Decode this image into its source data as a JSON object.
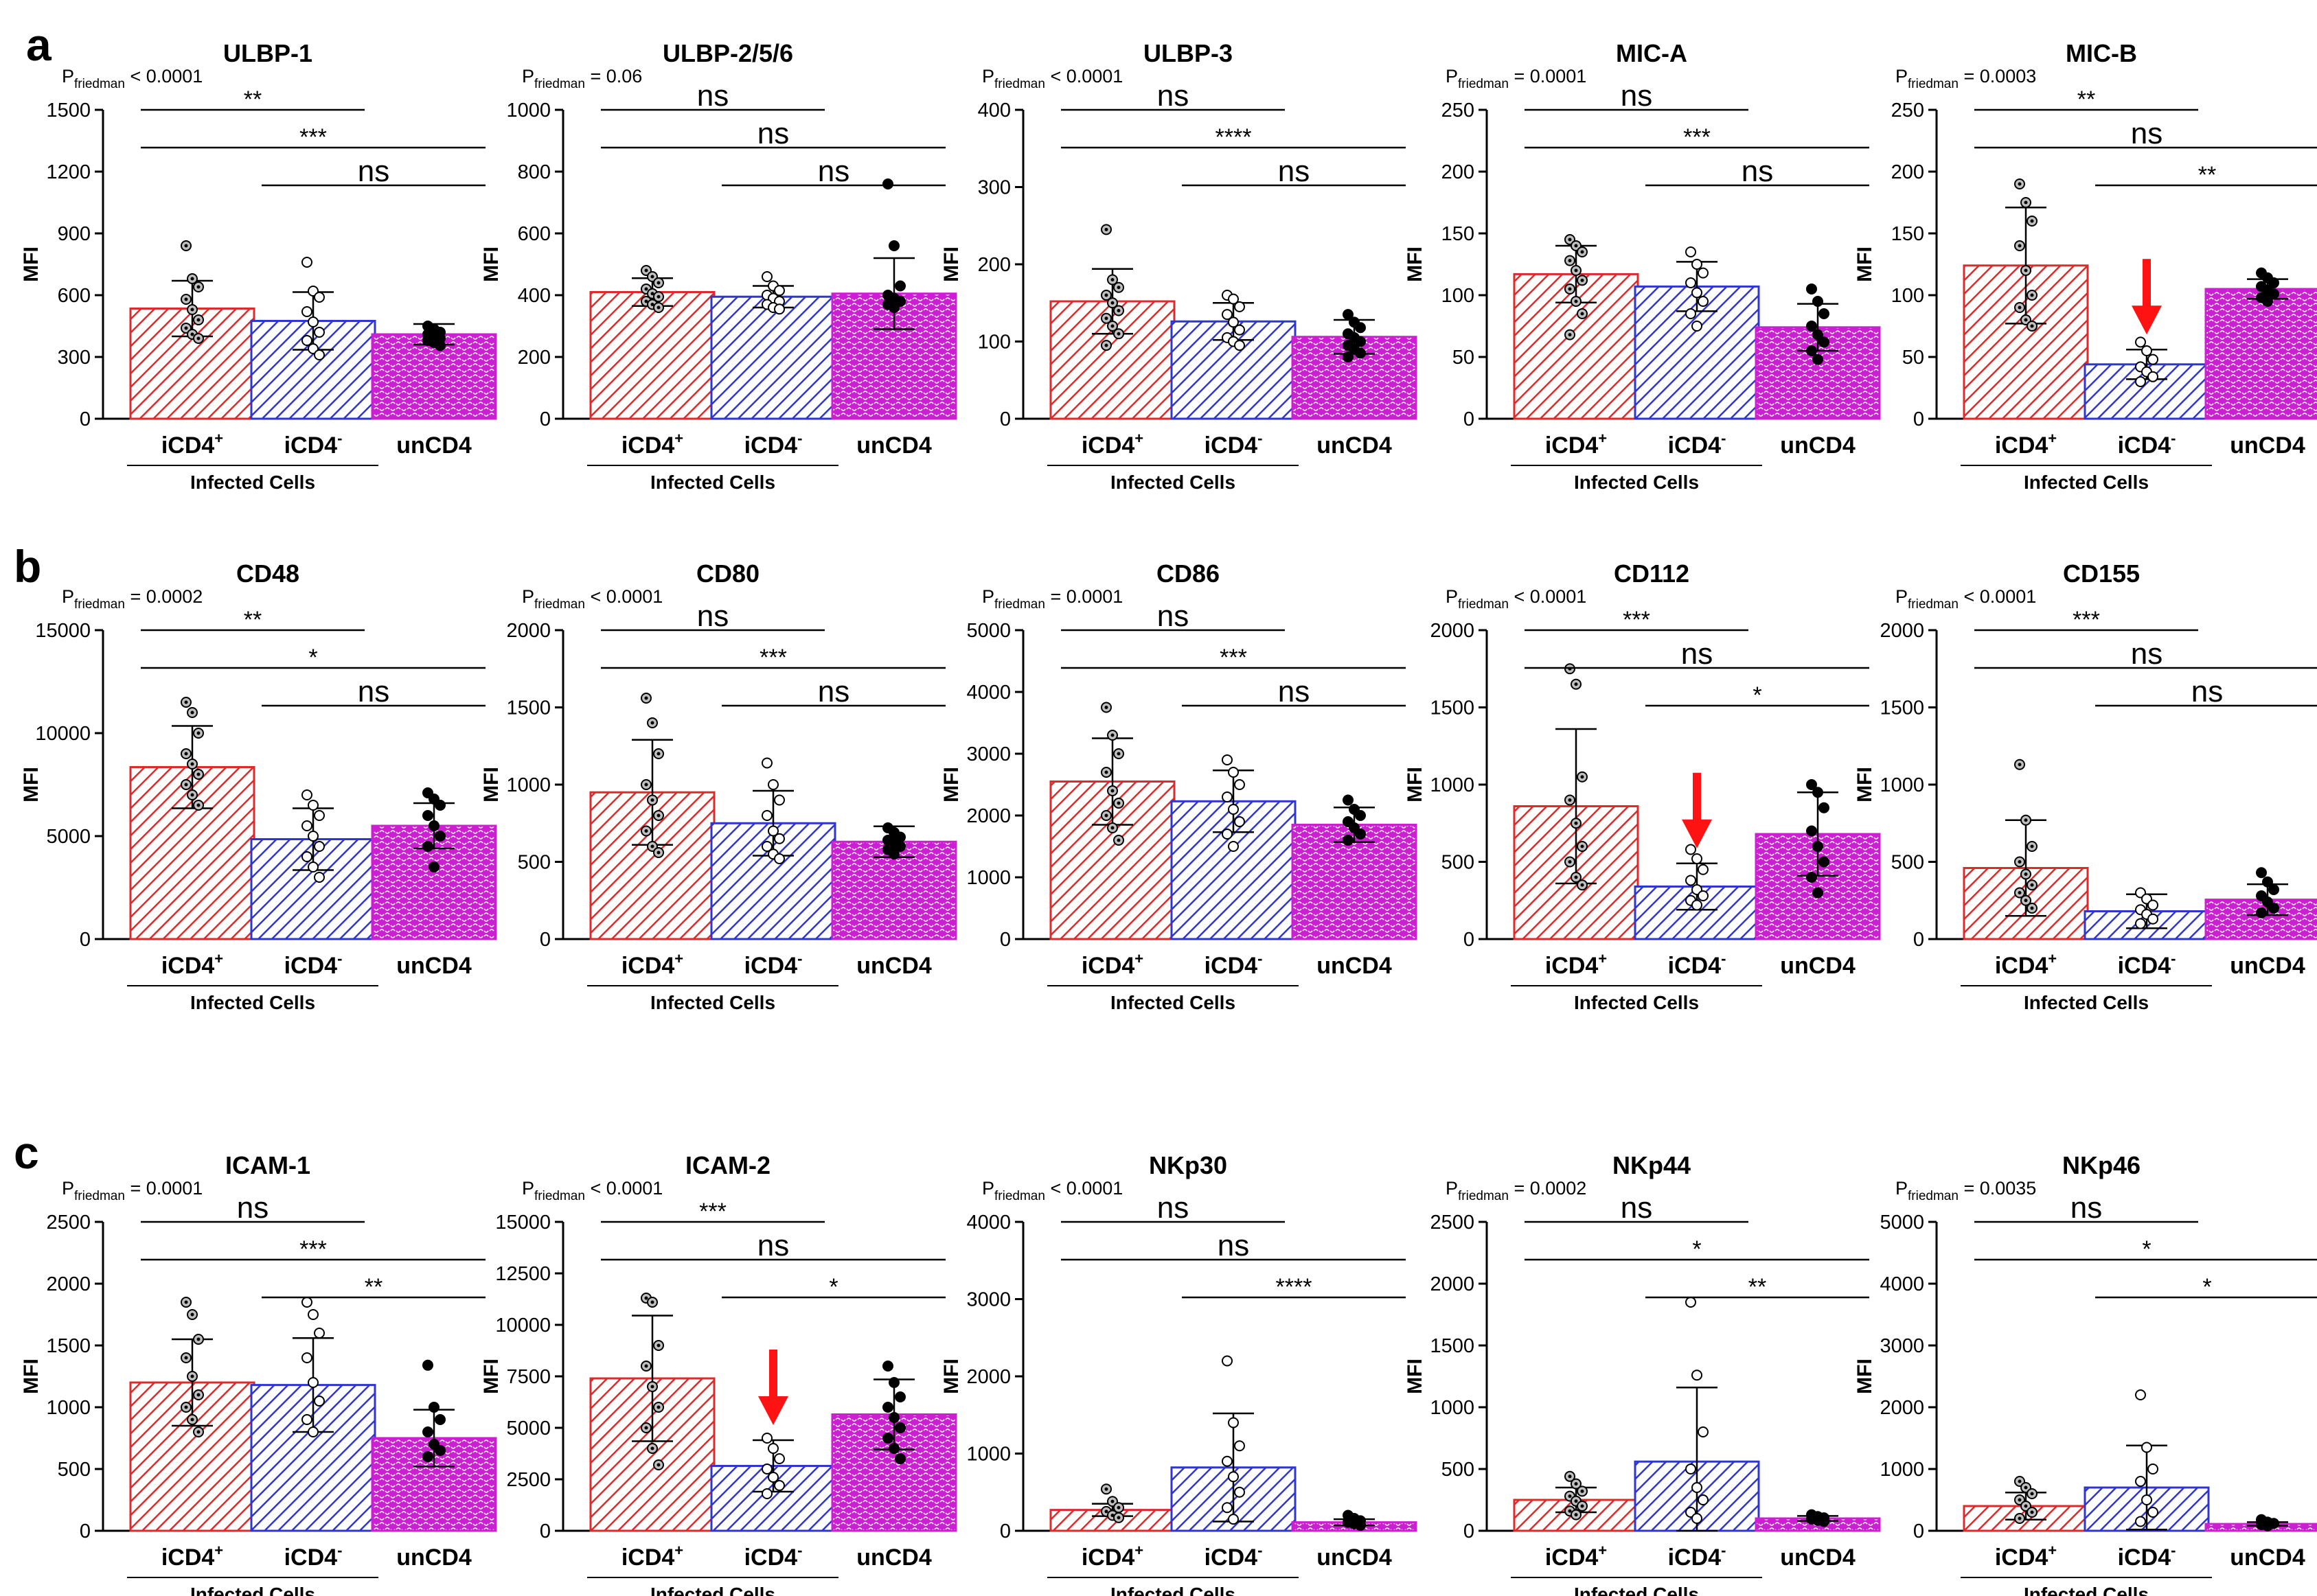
{
  "colors": {
    "red": "#dd2a2a",
    "blue": "#2f36cf",
    "magenta": "#cc1fd1",
    "arrow": "#ff1212",
    "axis": "#000000"
  },
  "rows": [
    {
      "label": "a"
    },
    {
      "label": "b"
    },
    {
      "label": "c"
    }
  ],
  "common": {
    "ylabel": "MFI",
    "infected_label": "Infected Cells",
    "p_prefix": "P",
    "p_sub": "friedman",
    "cat_iplus": {
      "base": "iCD4",
      "sup": "+"
    },
    "cat_iminus": {
      "base": "iCD4",
      "sup": "-"
    },
    "cat_un": "unCD4"
  },
  "chart_data": [
    {
      "type": "bar",
      "title": "ULBP-1",
      "p_value": " < 0.0001",
      "ylim": [
        0,
        1500
      ],
      "yticks": [
        0,
        300,
        600,
        900,
        1200,
        1500
      ],
      "categories": [
        "iCD4+",
        "iCD4-",
        "unCD4"
      ],
      "values": [
        535,
        475,
        410
      ],
      "sd": [
        135,
        140,
        50
      ],
      "points": [
        [
          840,
          680,
          640,
          580,
          530,
          480,
          440,
          410,
          390
        ],
        [
          760,
          620,
          590,
          520,
          470,
          420,
          380,
          340,
          310
        ],
        [
          450,
          435,
          420,
          410,
          400,
          390,
          380,
          370,
          355
        ]
      ],
      "brackets": [
        {
          "from": 0,
          "to": 1,
          "label": "**",
          "level": 0
        },
        {
          "from": 0,
          "to": 2,
          "label": "***",
          "level": 1
        },
        {
          "from": 1,
          "to": 2,
          "label": "ns",
          "level": 2
        }
      ],
      "arrow": false
    },
    {
      "type": "bar",
      "title": "ULBP-2/5/6",
      "p_value": " = 0.06",
      "ylim": [
        0,
        1000
      ],
      "yticks": [
        0,
        200,
        400,
        600,
        800,
        1000
      ],
      "categories": [
        "iCD4+",
        "iCD4-",
        "unCD4"
      ],
      "values": [
        410,
        395,
        405
      ],
      "sd": [
        45,
        35,
        115
      ],
      "points": [
        [
          480,
          460,
          440,
          420,
          405,
          395,
          380,
          370,
          360
        ],
        [
          460,
          430,
          415,
          400,
          390,
          380,
          370,
          360,
          355
        ],
        [
          760,
          560,
          430,
          400,
          390,
          380,
          370,
          360
        ]
      ],
      "brackets": [
        {
          "from": 0,
          "to": 1,
          "label": "ns",
          "level": 0
        },
        {
          "from": 0,
          "to": 2,
          "label": "ns",
          "level": 1
        },
        {
          "from": 1,
          "to": 2,
          "label": "ns",
          "level": 2
        }
      ],
      "arrow": false
    },
    {
      "type": "bar",
      "title": "ULBP-3",
      "p_value": " < 0.0001",
      "ylim": [
        0,
        400
      ],
      "yticks": [
        0,
        100,
        200,
        300,
        400
      ],
      "categories": [
        "iCD4+",
        "iCD4-",
        "unCD4"
      ],
      "values": [
        152,
        126,
        106
      ],
      "sd": [
        42,
        24,
        22
      ],
      "points": [
        [
          245,
          180,
          170,
          160,
          150,
          140,
          130,
          120,
          110,
          95
        ],
        [
          160,
          155,
          145,
          135,
          125,
          115,
          105,
          100,
          95
        ],
        [
          135,
          125,
          118,
          110,
          105,
          100,
          95,
          90,
          85,
          80
        ]
      ],
      "brackets": [
        {
          "from": 0,
          "to": 1,
          "label": "ns",
          "level": 0
        },
        {
          "from": 0,
          "to": 2,
          "label": "****",
          "level": 1
        },
        {
          "from": 1,
          "to": 2,
          "label": "ns",
          "level": 2
        }
      ],
      "arrow": false
    },
    {
      "type": "bar",
      "title": "MIC-A",
      "p_value": " = 0.0001",
      "ylim": [
        0,
        250
      ],
      "yticks": [
        0,
        50,
        100,
        150,
        200,
        250
      ],
      "categories": [
        "iCD4+",
        "iCD4-",
        "unCD4"
      ],
      "values": [
        117,
        107,
        74
      ],
      "sd": [
        23,
        20,
        19
      ],
      "points": [
        [
          145,
          140,
          135,
          128,
          120,
          112,
          105,
          95,
          85,
          68
        ],
        [
          135,
          125,
          118,
          110,
          102,
          95,
          85,
          75
        ],
        [
          105,
          95,
          85,
          75,
          68,
          62,
          55,
          48
        ]
      ],
      "brackets": [
        {
          "from": 0,
          "to": 1,
          "label": "ns",
          "level": 0
        },
        {
          "from": 0,
          "to": 2,
          "label": "***",
          "level": 1
        },
        {
          "from": 1,
          "to": 2,
          "label": "ns",
          "level": 2
        }
      ],
      "arrow": false
    },
    {
      "type": "bar",
      "title": "MIC-B",
      "p_value": " = 0.0003",
      "ylim": [
        0,
        250
      ],
      "yticks": [
        0,
        50,
        100,
        150,
        200,
        250
      ],
      "categories": [
        "iCD4+",
        "iCD4-",
        "unCD4"
      ],
      "values": [
        124,
        44,
        105
      ],
      "sd": [
        47,
        12,
        8
      ],
      "points": [
        [
          190,
          175,
          160,
          140,
          120,
          100,
          90,
          80,
          75
        ],
        [
          62,
          55,
          48,
          42,
          38,
          34,
          30
        ],
        [
          118,
          114,
          110,
          107,
          104,
          101,
          98,
          95
        ]
      ],
      "brackets": [
        {
          "from": 0,
          "to": 1,
          "label": "**",
          "level": 0
        },
        {
          "from": 0,
          "to": 2,
          "label": "ns",
          "level": 1
        },
        {
          "from": 1,
          "to": 2,
          "label": "**",
          "level": 2
        }
      ],
      "arrow": true
    },
    {
      "type": "bar",
      "title": "CD48",
      "p_value": " = 0.0002",
      "ylim": [
        0,
        15000
      ],
      "yticks": [
        0,
        5000,
        10000,
        15000
      ],
      "categories": [
        "iCD4+",
        "iCD4-",
        "unCD4"
      ],
      "values": [
        8350,
        4850,
        5500
      ],
      "sd": [
        2000,
        1500,
        1100
      ],
      "points": [
        [
          11500,
          11000,
          10000,
          9000,
          8500,
          8000,
          7500,
          7000,
          6500
        ],
        [
          7000,
          6500,
          6000,
          5500,
          5000,
          4500,
          4000,
          3500,
          3000
        ],
        [
          7100,
          6800,
          6500,
          6000,
          5500,
          5000,
          4500,
          3500
        ]
      ],
      "brackets": [
        {
          "from": 0,
          "to": 1,
          "label": "**",
          "level": 0
        },
        {
          "from": 0,
          "to": 2,
          "label": "*",
          "level": 1
        },
        {
          "from": 1,
          "to": 2,
          "label": "ns",
          "level": 2
        }
      ],
      "arrow": false
    },
    {
      "type": "bar",
      "title": "CD80",
      "p_value": " < 0.0001",
      "ylim": [
        0,
        2000
      ],
      "yticks": [
        0,
        500,
        1000,
        1500,
        2000
      ],
      "categories": [
        "iCD4+",
        "iCD4-",
        "unCD4"
      ],
      "values": [
        950,
        750,
        630
      ],
      "sd": [
        340,
        210,
        100
      ],
      "points": [
        [
          1560,
          1400,
          1200,
          1000,
          900,
          800,
          700,
          600,
          560
        ],
        [
          1140,
          1000,
          900,
          800,
          700,
          650,
          600,
          550,
          520
        ],
        [
          720,
          690,
          660,
          640,
          620,
          600,
          580,
          550
        ]
      ],
      "brackets": [
        {
          "from": 0,
          "to": 1,
          "label": "ns",
          "level": 0
        },
        {
          "from": 0,
          "to": 2,
          "label": "***",
          "level": 1
        },
        {
          "from": 1,
          "to": 2,
          "label": "ns",
          "level": 2
        }
      ],
      "arrow": false
    },
    {
      "type": "bar",
      "title": "CD86",
      "p_value": " = 0.0001",
      "ylim": [
        0,
        5000
      ],
      "yticks": [
        0,
        1000,
        2000,
        3000,
        4000,
        5000
      ],
      "categories": [
        "iCD4+",
        "iCD4-",
        "unCD4"
      ],
      "values": [
        2550,
        2230,
        1850
      ],
      "sd": [
        700,
        500,
        280
      ],
      "points": [
        [
          3750,
          3300,
          3000,
          2700,
          2400,
          2200,
          2000,
          1800,
          1600
        ],
        [
          2900,
          2700,
          2500,
          2300,
          2100,
          1900,
          1700,
          1500
        ],
        [
          2250,
          2100,
          2000,
          1900,
          1800,
          1700,
          1600
        ]
      ],
      "brackets": [
        {
          "from": 0,
          "to": 1,
          "label": "ns",
          "level": 0
        },
        {
          "from": 0,
          "to": 2,
          "label": "***",
          "level": 1
        },
        {
          "from": 1,
          "to": 2,
          "label": "ns",
          "level": 2
        }
      ],
      "arrow": false
    },
    {
      "type": "bar",
      "title": "CD112",
      "p_value": " < 0.0001",
      "ylim": [
        0,
        2000
      ],
      "yticks": [
        0,
        500,
        1000,
        1500,
        2000
      ],
      "categories": [
        "iCD4+",
        "iCD4-",
        "unCD4"
      ],
      "values": [
        860,
        340,
        680
      ],
      "sd": [
        500,
        150,
        270
      ],
      "points": [
        [
          1750,
          1650,
          1050,
          900,
          750,
          600,
          500,
          400,
          350
        ],
        [
          580,
          520,
          450,
          380,
          320,
          280,
          250,
          220
        ],
        [
          1000,
          950,
          850,
          700,
          600,
          500,
          400,
          300
        ]
      ],
      "brackets": [
        {
          "from": 0,
          "to": 1,
          "label": "***",
          "level": 0
        },
        {
          "from": 0,
          "to": 2,
          "label": "ns",
          "level": 1
        },
        {
          "from": 1,
          "to": 2,
          "label": "*",
          "level": 2
        }
      ],
      "arrow": true
    },
    {
      "type": "bar",
      "title": "CD155",
      "p_value": " < 0.0001",
      "ylim": [
        0,
        2000
      ],
      "yticks": [
        0,
        500,
        1000,
        1500,
        2000
      ],
      "categories": [
        "iCD4+",
        "iCD4-",
        "unCD4"
      ],
      "values": [
        460,
        180,
        255
      ],
      "sd": [
        310,
        110,
        100
      ],
      "points": [
        [
          1130,
          770,
          600,
          500,
          420,
          350,
          300,
          250,
          200
        ],
        [
          300,
          260,
          220,
          190,
          160,
          130,
          100
        ],
        [
          430,
          370,
          320,
          280,
          240,
          200,
          170
        ]
      ],
      "brackets": [
        {
          "from": 0,
          "to": 1,
          "label": "***",
          "level": 0
        },
        {
          "from": 0,
          "to": 2,
          "label": "ns",
          "level": 1
        },
        {
          "from": 1,
          "to": 2,
          "label": "ns",
          "level": 2
        }
      ],
      "arrow": false
    },
    {
      "type": "bar",
      "title": "ICAM-1",
      "p_value": " = 0.0001",
      "ylim": [
        0,
        2500
      ],
      "yticks": [
        0,
        500,
        1000,
        1500,
        2000,
        2500
      ],
      "categories": [
        "iCD4+",
        "iCD4-",
        "unCD4"
      ],
      "values": [
        1200,
        1180,
        750
      ],
      "sd": [
        350,
        380,
        230
      ],
      "points": [
        [
          1850,
          1750,
          1550,
          1400,
          1250,
          1100,
          1000,
          900,
          800
        ],
        [
          1850,
          1750,
          1600,
          1400,
          1200,
          1050,
          900,
          800
        ],
        [
          1340,
          1000,
          900,
          800,
          700,
          650,
          600
        ]
      ],
      "brackets": [
        {
          "from": 0,
          "to": 1,
          "label": "ns",
          "level": 0
        },
        {
          "from": 0,
          "to": 2,
          "label": "***",
          "level": 1
        },
        {
          "from": 1,
          "to": 2,
          "label": "**",
          "level": 2
        }
      ],
      "arrow": false
    },
    {
      "type": "bar",
      "title": "ICAM-2",
      "p_value": " < 0.0001",
      "ylim": [
        0,
        15000
      ],
      "yticks": [
        0,
        2500,
        5000,
        7500,
        10000,
        12500,
        15000
      ],
      "categories": [
        "iCD4+",
        "iCD4-",
        "unCD4"
      ],
      "values": [
        7400,
        3150,
        5650
      ],
      "sd": [
        3050,
        1250,
        1700
      ],
      "points": [
        [
          11300,
          11100,
          9000,
          8000,
          7000,
          6000,
          5000,
          4000,
          3200
        ],
        [
          4500,
          4000,
          3500,
          3000,
          2600,
          2200,
          1800
        ],
        [
          8000,
          7200,
          6500,
          6000,
          5500,
          5000,
          4500,
          4000,
          3500
        ]
      ],
      "brackets": [
        {
          "from": 0,
          "to": 1,
          "label": "***",
          "level": 0
        },
        {
          "from": 0,
          "to": 2,
          "label": "ns",
          "level": 1
        },
        {
          "from": 1,
          "to": 2,
          "label": "*",
          "level": 2
        }
      ],
      "arrow": true
    },
    {
      "type": "bar",
      "title": "NKp30",
      "p_value": " < 0.0001",
      "ylim": [
        0,
        4000
      ],
      "yticks": [
        0,
        1000,
        2000,
        3000,
        4000
      ],
      "categories": [
        "iCD4+",
        "iCD4-",
        "unCD4"
      ],
      "values": [
        270,
        820,
        110
      ],
      "sd": [
        80,
        700,
        40
      ],
      "points": [
        [
          540,
          380,
          300,
          250,
          200,
          170
        ],
        [
          2200,
          1400,
          1100,
          900,
          700,
          500,
          300,
          150
        ],
        [
          200,
          160,
          130,
          110,
          90,
          70
        ]
      ],
      "brackets": [
        {
          "from": 0,
          "to": 1,
          "label": "ns",
          "level": 0
        },
        {
          "from": 0,
          "to": 2,
          "label": "ns",
          "level": 1
        },
        {
          "from": 1,
          "to": 2,
          "label": "****",
          "level": 2
        }
      ],
      "arrow": false
    },
    {
      "type": "bar",
      "title": "NKp44",
      "p_value": " = 0.0002",
      "ylim": [
        0,
        2500
      ],
      "yticks": [
        0,
        500,
        1000,
        1500,
        2000,
        2500
      ],
      "categories": [
        "iCD4+",
        "iCD4-",
        "unCD4"
      ],
      "values": [
        250,
        560,
        100
      ],
      "sd": [
        100,
        600,
        20
      ],
      "points": [
        [
          440,
          380,
          320,
          280,
          240,
          200,
          160,
          130
        ],
        [
          1850,
          1260,
          800,
          500,
          350,
          250,
          150,
          100
        ],
        [
          130,
          115,
          105,
          95,
          85,
          75
        ]
      ],
      "brackets": [
        {
          "from": 0,
          "to": 1,
          "label": "ns",
          "level": 0
        },
        {
          "from": 0,
          "to": 2,
          "label": "*",
          "level": 1
        },
        {
          "from": 1,
          "to": 2,
          "label": "**",
          "level": 2
        }
      ],
      "arrow": false
    },
    {
      "type": "bar",
      "title": "NKp46",
      "p_value": " = 0.0035",
      "ylim": [
        0,
        5000
      ],
      "yticks": [
        0,
        1000,
        2000,
        3000,
        4000,
        5000
      ],
      "categories": [
        "iCD4+",
        "iCD4-",
        "unCD4"
      ],
      "values": [
        400,
        700,
        110
      ],
      "sd": [
        220,
        680,
        30
      ],
      "points": [
        [
          800,
          700,
          600,
          500,
          400,
          300,
          200
        ],
        [
          2200,
          1350,
          1000,
          800,
          500,
          300,
          150
        ],
        [
          180,
          140,
          120,
          100,
          80
        ]
      ],
      "brackets": [
        {
          "from": 0,
          "to": 1,
          "label": "ns",
          "level": 0
        },
        {
          "from": 0,
          "to": 2,
          "label": "*",
          "level": 1
        },
        {
          "from": 1,
          "to": 2,
          "label": "*",
          "level": 2
        }
      ],
      "arrow": false
    }
  ]
}
